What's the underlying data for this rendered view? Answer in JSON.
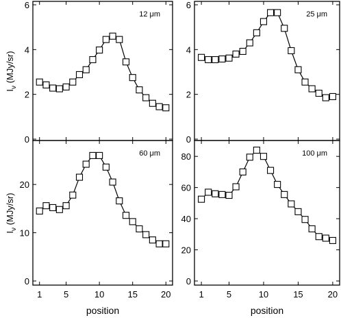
{
  "chart_data": [
    {
      "type": "line",
      "annotation": "12 μm",
      "x": [
        1,
        2,
        3,
        4,
        5,
        6,
        7,
        8,
        9,
        10,
        11,
        12,
        13,
        14,
        15,
        16,
        17,
        18,
        19,
        20
      ],
      "values": [
        2.55,
        2.42,
        2.28,
        2.25,
        2.33,
        2.55,
        2.88,
        3.1,
        3.55,
        3.98,
        4.45,
        4.6,
        4.45,
        3.45,
        2.75,
        2.2,
        1.85,
        1.6,
        1.45,
        1.4
      ],
      "ylim": [
        0,
        6
      ],
      "yticks": [
        "0",
        "2",
        "4",
        "6"
      ]
    },
    {
      "type": "line",
      "annotation": "25 μm",
      "x": [
        1,
        2,
        3,
        4,
        5,
        6,
        7,
        8,
        9,
        10,
        11,
        12,
        13,
        14,
        15,
        16,
        17,
        18,
        19,
        20
      ],
      "values": [
        3.65,
        3.55,
        3.55,
        3.58,
        3.62,
        3.8,
        3.92,
        4.3,
        4.75,
        5.25,
        5.65,
        5.65,
        4.95,
        3.95,
        3.1,
        2.55,
        2.25,
        2.05,
        1.85,
        1.9
      ],
      "ylim": [
        0,
        6
      ],
      "yticks": [
        "0",
        "2",
        "4",
        "6"
      ]
    },
    {
      "type": "line",
      "annotation": "60 μm",
      "x": [
        1,
        2,
        3,
        4,
        5,
        6,
        7,
        8,
        9,
        10,
        11,
        12,
        13,
        14,
        15,
        16,
        17,
        18,
        19,
        20
      ],
      "values": [
        14.5,
        15.6,
        15.2,
        14.8,
        15.6,
        17.8,
        21.5,
        24.2,
        26.0,
        26.0,
        23.6,
        20.5,
        16.6,
        13.6,
        12.3,
        10.8,
        9.6,
        8.5,
        7.7,
        7.7
      ],
      "ylim": [
        0,
        28.4
      ],
      "yticks": [
        "0",
        "10",
        "20"
      ]
    },
    {
      "type": "line",
      "annotation": "100 μm",
      "x": [
        1,
        2,
        3,
        4,
        5,
        6,
        7,
        8,
        9,
        10,
        11,
        12,
        13,
        14,
        15,
        16,
        17,
        18,
        19,
        20
      ],
      "values": [
        52.5,
        57,
        56,
        55.5,
        55,
        60.5,
        70,
        79.5,
        84,
        80,
        71,
        62,
        55.5,
        49.5,
        44.5,
        39.5,
        33.5,
        28.5,
        27.5,
        26
      ],
      "ylim": [
        0,
        88
      ],
      "yticks": [
        "0",
        "20",
        "40",
        "60",
        "80"
      ]
    }
  ],
  "axes": {
    "ylabel": "I",
    "ylabel_sub": "ν",
    "ylabel_unit": " (MJy/sr)",
    "xlabel": "position",
    "xticks": [
      "1",
      "5",
      "10",
      "15",
      "20"
    ],
    "xlim": [
      0,
      21
    ]
  }
}
